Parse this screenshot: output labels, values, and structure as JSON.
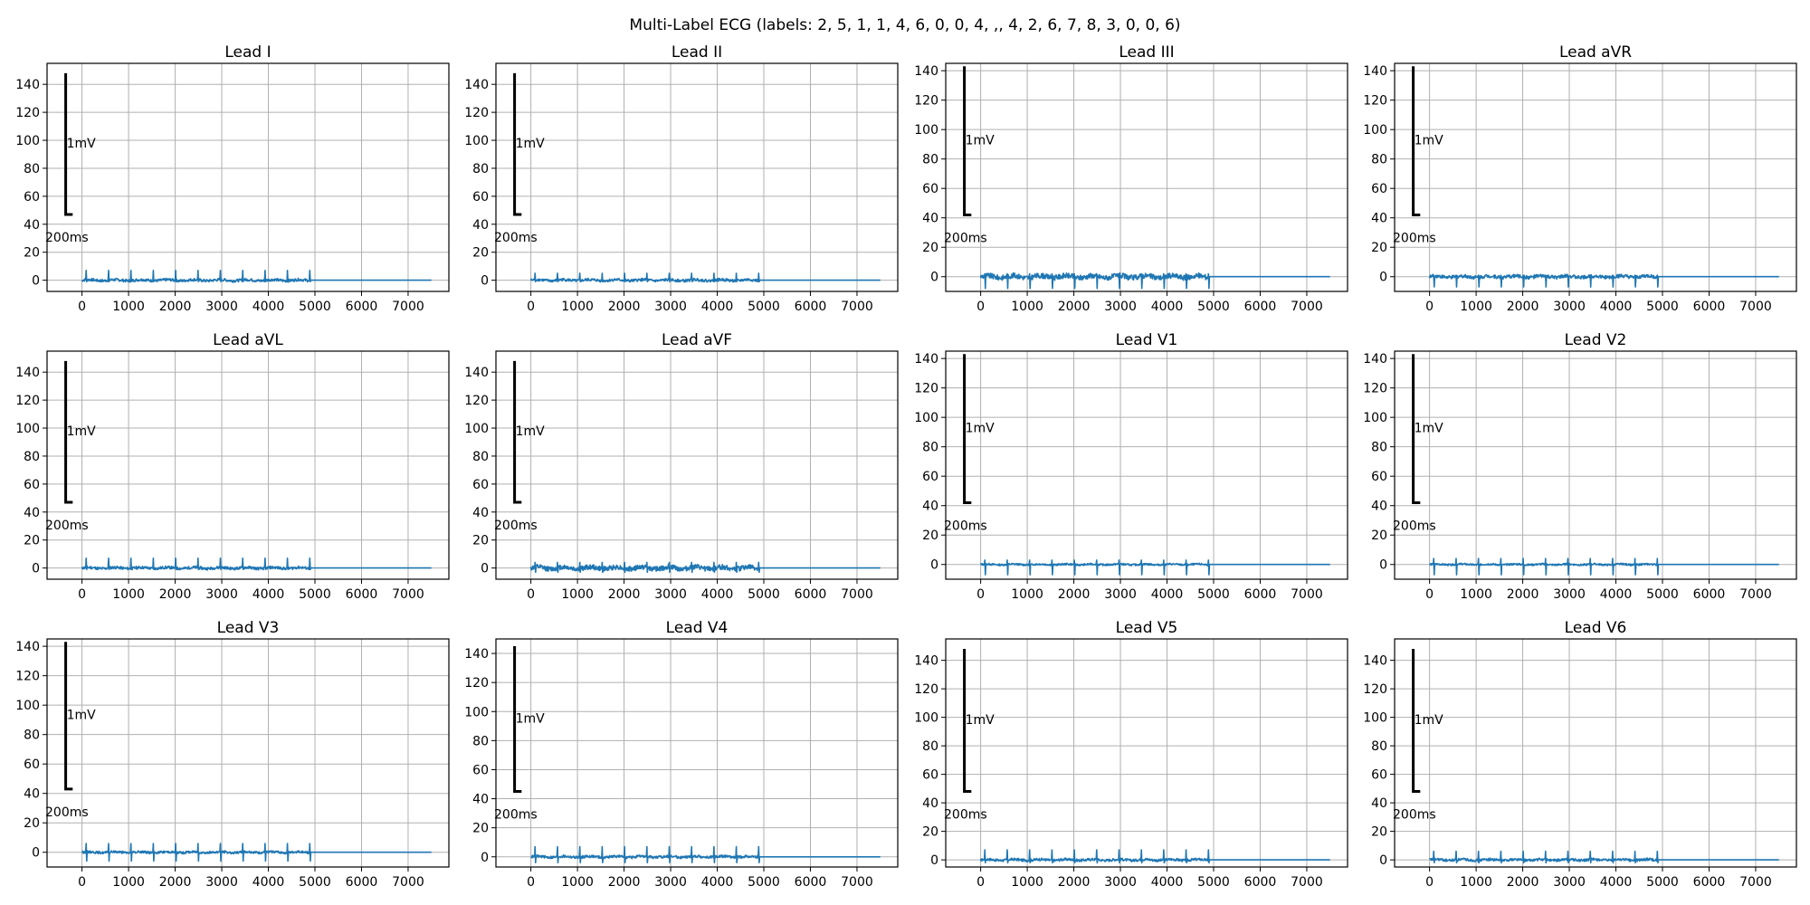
{
  "figure": {
    "title": "Multi-Label ECG (labels: 2, 5, 1, 1, 4, 6, 0, 0, 4, ,, 4, 2, 6, 7, 8, 3, 0, 0, 6)"
  },
  "colors": {
    "trace": "#1f77b4",
    "calibration": "#000000",
    "grid": "#b0b0b0"
  },
  "chart_data": {
    "type": "line",
    "grid": true,
    "xlim": [
      -750,
      7875
    ],
    "xticks": [
      0,
      1000,
      2000,
      3000,
      4000,
      5000,
      6000,
      7000
    ],
    "signal": {
      "end_ms": 7500,
      "active_until_ms": 4900,
      "beat_interval_ms": 480,
      "first_beat_ms": 90
    },
    "calibration": {
      "x_ms": -350,
      "width_ms": 150,
      "voltage_label": "1mV",
      "time_label": "200ms"
    },
    "leads": [
      {
        "name": "Lead I",
        "ylim": [
          -8,
          155
        ],
        "yticks": [
          0,
          20,
          40,
          60,
          80,
          100,
          120,
          140
        ],
        "cal_bottom": 47,
        "cal_top": 148,
        "peak": 7,
        "dip": -1,
        "noise": 1.0
      },
      {
        "name": "Lead II",
        "ylim": [
          -8,
          155
        ],
        "yticks": [
          0,
          20,
          40,
          60,
          80,
          100,
          120,
          140
        ],
        "cal_bottom": 47,
        "cal_top": 148,
        "peak": 5,
        "dip": -1,
        "noise": 1.0
      },
      {
        "name": "Lead III",
        "ylim": [
          -10,
          145
        ],
        "yticks": [
          0,
          20,
          40,
          60,
          80,
          100,
          120,
          140
        ],
        "cal_bottom": 42,
        "cal_top": 143,
        "peak": 2,
        "dip": -8,
        "noise": 1.8
      },
      {
        "name": "Lead aVR",
        "ylim": [
          -10,
          145
        ],
        "yticks": [
          0,
          20,
          40,
          60,
          80,
          100,
          120,
          140
        ],
        "cal_bottom": 42,
        "cal_top": 143,
        "peak": 1,
        "dip": -7,
        "noise": 1.2
      },
      {
        "name": "Lead aVL",
        "ylim": [
          -8,
          155
        ],
        "yticks": [
          0,
          20,
          40,
          60,
          80,
          100,
          120,
          140
        ],
        "cal_bottom": 47,
        "cal_top": 148,
        "peak": 7,
        "dip": -1,
        "noise": 1.0
      },
      {
        "name": "Lead aVF",
        "ylim": [
          -8,
          155
        ],
        "yticks": [
          0,
          20,
          40,
          60,
          80,
          100,
          120,
          140
        ],
        "cal_bottom": 47,
        "cal_top": 148,
        "peak": 4,
        "dip": -3,
        "noise": 1.8
      },
      {
        "name": "Lead V1",
        "ylim": [
          -10,
          145
        ],
        "yticks": [
          0,
          20,
          40,
          60,
          80,
          100,
          120,
          140
        ],
        "cal_bottom": 42,
        "cal_top": 143,
        "peak": 3,
        "dip": -7,
        "noise": 0.6
      },
      {
        "name": "Lead V2",
        "ylim": [
          -10,
          145
        ],
        "yticks": [
          0,
          20,
          40,
          60,
          80,
          100,
          120,
          140
        ],
        "cal_bottom": 42,
        "cal_top": 143,
        "peak": 4,
        "dip": -7,
        "noise": 0.6
      },
      {
        "name": "Lead V3",
        "ylim": [
          -10,
          145
        ],
        "yticks": [
          0,
          20,
          40,
          60,
          80,
          100,
          120,
          140
        ],
        "cal_bottom": 43,
        "cal_top": 143,
        "peak": 6,
        "dip": -6,
        "noise": 0.8
      },
      {
        "name": "Lead V4",
        "ylim": [
          -7,
          150
        ],
        "yticks": [
          0,
          20,
          40,
          60,
          80,
          100,
          120,
          140
        ],
        "cal_bottom": 45,
        "cal_top": 145,
        "peak": 7,
        "dip": -4,
        "noise": 0.9
      },
      {
        "name": "Lead V5",
        "ylim": [
          -5,
          155
        ],
        "yticks": [
          0,
          20,
          40,
          60,
          80,
          100,
          120,
          140
        ],
        "cal_bottom": 48,
        "cal_top": 148,
        "peak": 7,
        "dip": -2,
        "noise": 0.9
      },
      {
        "name": "Lead V6",
        "ylim": [
          -5,
          155
        ],
        "yticks": [
          0,
          20,
          40,
          60,
          80,
          100,
          120,
          140
        ],
        "cal_bottom": 48,
        "cal_top": 148,
        "peak": 6,
        "dip": -2,
        "noise": 0.9
      }
    ]
  }
}
